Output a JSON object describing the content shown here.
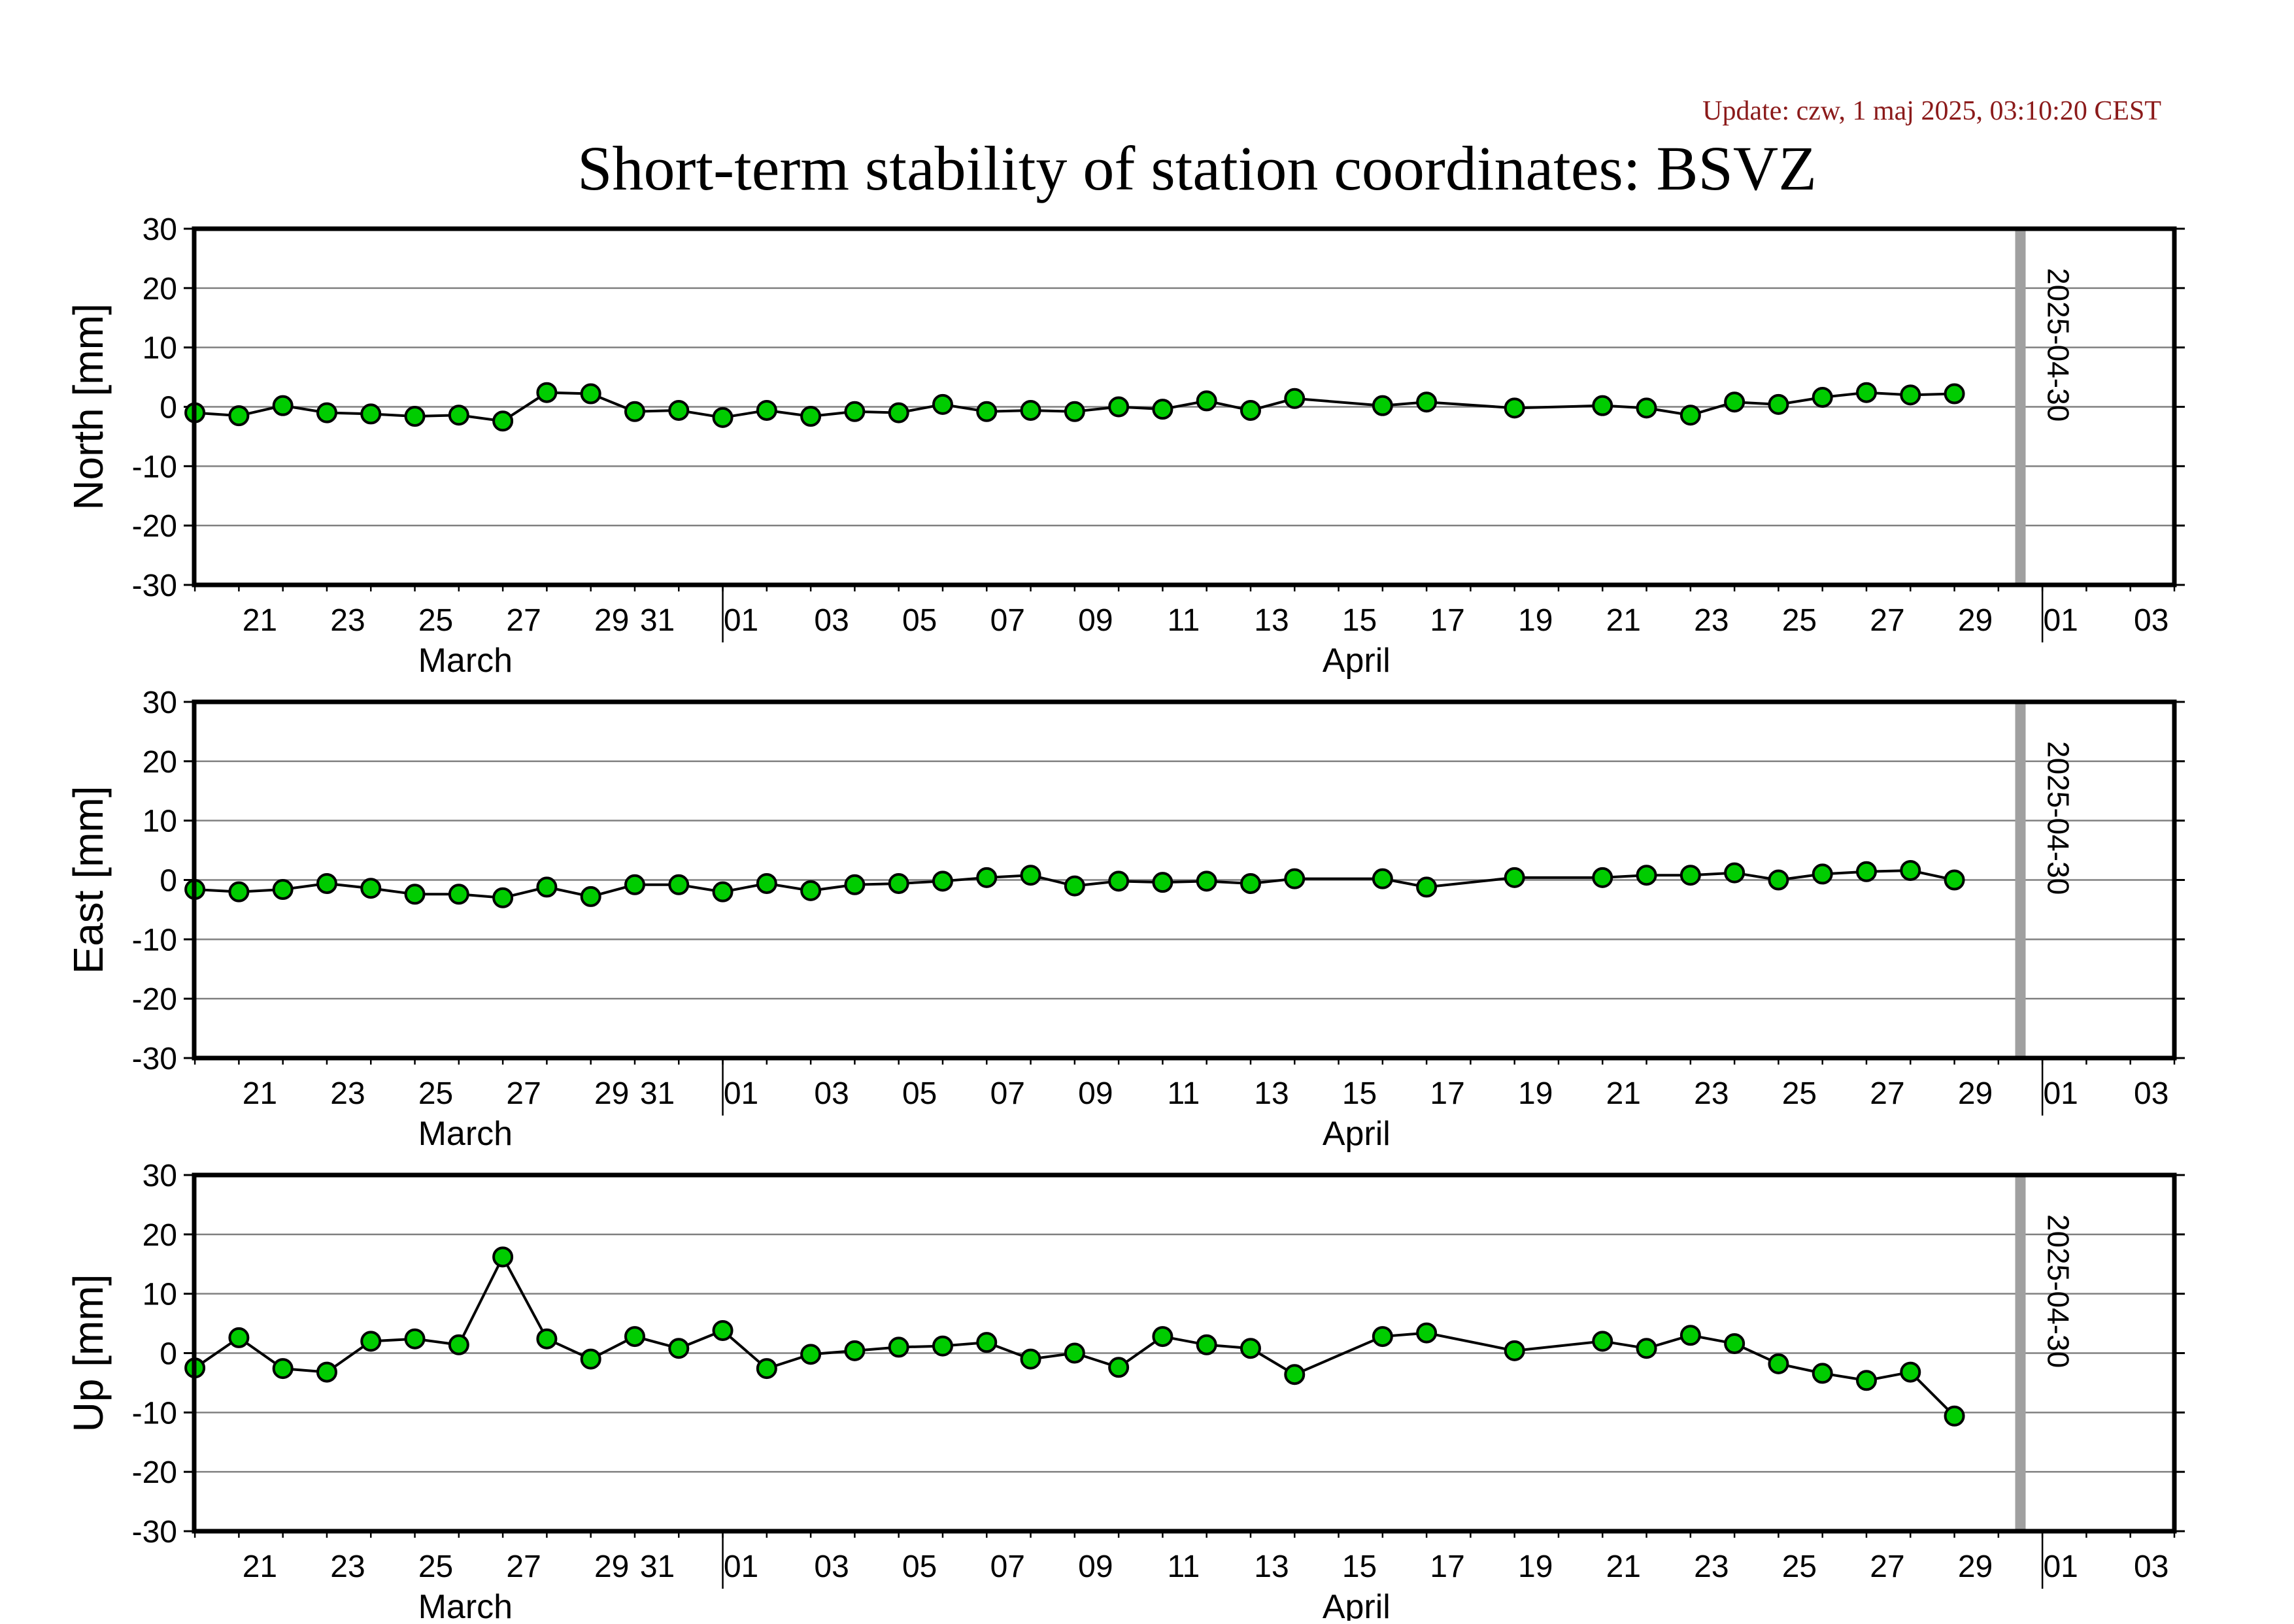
{
  "update_text": "Update: czw, 1 maj 2025, 03:10:20 CEST",
  "title": "Short-term stability of station coordinates: BSVZ",
  "colors": {
    "marker_fill": "#00cc00",
    "marker_stroke": "#000000",
    "line": "#000000",
    "grid": "#808080",
    "current_date_line": "#a0a0a0",
    "update_text": "#8b1a1a"
  },
  "chart_data": [
    {
      "type": "line",
      "ylabel": "North [mm]",
      "ylim": [
        -30,
        30
      ],
      "yticks": [
        30,
        20,
        10,
        0,
        -10,
        -20,
        -30
      ],
      "xlim": [
        "2025-03-20",
        "2025-05-04"
      ],
      "x_tick_labels": [
        "21",
        "23",
        "25",
        "27",
        "29",
        "31",
        "01",
        "03",
        "05",
        "07",
        "09",
        "11",
        "13",
        "15",
        "17",
        "19",
        "21",
        "23",
        "25",
        "27",
        "29",
        "01",
        "03"
      ],
      "month_labels": [
        "March",
        "April"
      ],
      "grid": true,
      "marker_date": "2025-04-30",
      "series": [
        {
          "x": [
            "2025-03-20",
            "2025-03-21",
            "2025-03-22",
            "2025-03-23",
            "2025-03-24",
            "2025-03-25",
            "2025-03-26",
            "2025-03-27",
            "2025-03-28",
            "2025-03-29",
            "2025-03-30",
            "2025-03-31",
            "2025-04-01",
            "2025-04-02",
            "2025-04-03",
            "2025-04-04",
            "2025-04-05",
            "2025-04-06",
            "2025-04-07",
            "2025-04-08",
            "2025-04-09",
            "2025-04-10",
            "2025-04-11",
            "2025-04-12",
            "2025-04-13",
            "2025-04-14",
            "2025-04-16",
            "2025-04-17",
            "2025-04-19",
            "2025-04-21",
            "2025-04-22",
            "2025-04-23",
            "2025-04-24",
            "2025-04-25",
            "2025-04-26",
            "2025-04-27",
            "2025-04-28",
            "2025-04-29"
          ],
          "y": [
            -1.0,
            -1.5,
            0.2,
            -1.0,
            -1.2,
            -1.6,
            -1.4,
            -2.4,
            2.4,
            2.2,
            -0.8,
            -0.6,
            -1.8,
            -0.6,
            -1.6,
            -0.8,
            -1.0,
            0.4,
            -0.8,
            -0.6,
            -0.8,
            0.0,
            -0.4,
            1.0,
            -0.6,
            1.4,
            0.2,
            0.8,
            -0.2,
            0.2,
            -0.2,
            -1.4,
            0.8,
            0.4,
            1.6,
            2.4,
            2.0,
            2.2
          ]
        }
      ]
    },
    {
      "type": "line",
      "ylabel": "East [mm]",
      "ylim": [
        -30,
        30
      ],
      "yticks": [
        30,
        20,
        10,
        0,
        -10,
        -20,
        -30
      ],
      "xlim": [
        "2025-03-20",
        "2025-05-04"
      ],
      "x_tick_labels": [
        "21",
        "23",
        "25",
        "27",
        "29",
        "31",
        "01",
        "03",
        "05",
        "07",
        "09",
        "11",
        "13",
        "15",
        "17",
        "19",
        "21",
        "23",
        "25",
        "27",
        "29",
        "01",
        "03"
      ],
      "month_labels": [
        "March",
        "April"
      ],
      "grid": true,
      "marker_date": "2025-04-30",
      "series": [
        {
          "x": [
            "2025-03-20",
            "2025-03-21",
            "2025-03-22",
            "2025-03-23",
            "2025-03-24",
            "2025-03-25",
            "2025-03-26",
            "2025-03-27",
            "2025-03-28",
            "2025-03-29",
            "2025-03-30",
            "2025-03-31",
            "2025-04-01",
            "2025-04-02",
            "2025-04-03",
            "2025-04-04",
            "2025-04-05",
            "2025-04-06",
            "2025-04-07",
            "2025-04-08",
            "2025-04-09",
            "2025-04-10",
            "2025-04-11",
            "2025-04-12",
            "2025-04-13",
            "2025-04-14",
            "2025-04-16",
            "2025-04-17",
            "2025-04-19",
            "2025-04-21",
            "2025-04-22",
            "2025-04-23",
            "2025-04-24",
            "2025-04-25",
            "2025-04-26",
            "2025-04-27",
            "2025-04-28",
            "2025-04-29"
          ],
          "y": [
            -1.6,
            -2.0,
            -1.6,
            -0.6,
            -1.4,
            -2.4,
            -2.4,
            -3.0,
            -1.2,
            -2.8,
            -0.8,
            -0.8,
            -2.0,
            -0.6,
            -1.8,
            -0.8,
            -0.6,
            -0.2,
            0.4,
            0.8,
            -1.0,
            -0.2,
            -0.4,
            -0.2,
            -0.6,
            0.2,
            0.2,
            -1.2,
            0.4,
            0.4,
            0.8,
            0.8,
            1.2,
            0.0,
            1.0,
            1.4,
            1.6,
            0.0
          ]
        }
      ]
    },
    {
      "type": "line",
      "ylabel": "Up [mm]",
      "ylim": [
        -30,
        30
      ],
      "yticks": [
        30,
        20,
        10,
        0,
        -10,
        -20,
        -30
      ],
      "xlim": [
        "2025-03-20",
        "2025-05-04"
      ],
      "x_tick_labels": [
        "21",
        "23",
        "25",
        "27",
        "29",
        "31",
        "01",
        "03",
        "05",
        "07",
        "09",
        "11",
        "13",
        "15",
        "17",
        "19",
        "21",
        "23",
        "25",
        "27",
        "29",
        "01",
        "03"
      ],
      "month_labels": [
        "March",
        "April"
      ],
      "grid": true,
      "marker_date": "2025-04-30",
      "series": [
        {
          "x": [
            "2025-03-20",
            "2025-03-21",
            "2025-03-22",
            "2025-03-23",
            "2025-03-24",
            "2025-03-25",
            "2025-03-26",
            "2025-03-27",
            "2025-03-28",
            "2025-03-29",
            "2025-03-30",
            "2025-03-31",
            "2025-04-01",
            "2025-04-02",
            "2025-04-03",
            "2025-04-04",
            "2025-04-05",
            "2025-04-06",
            "2025-04-07",
            "2025-04-08",
            "2025-04-09",
            "2025-04-10",
            "2025-04-11",
            "2025-04-12",
            "2025-04-13",
            "2025-04-14",
            "2025-04-16",
            "2025-04-17",
            "2025-04-19",
            "2025-04-21",
            "2025-04-22",
            "2025-04-23",
            "2025-04-24",
            "2025-04-25",
            "2025-04-26",
            "2025-04-27",
            "2025-04-28",
            "2025-04-29"
          ],
          "y": [
            -2.5,
            2.6,
            -2.6,
            -3.2,
            2.0,
            2.4,
            1.4,
            16.2,
            2.4,
            -1.0,
            2.8,
            0.8,
            3.8,
            -2.6,
            -0.2,
            0.4,
            1.0,
            1.2,
            1.8,
            -1.0,
            0.0,
            -2.4,
            2.8,
            1.4,
            0.8,
            -3.6,
            2.8,
            3.4,
            0.4,
            2.0,
            0.8,
            3.0,
            1.6,
            -1.8,
            -3.4,
            -4.6,
            -3.2,
            -10.6
          ]
        }
      ]
    }
  ]
}
